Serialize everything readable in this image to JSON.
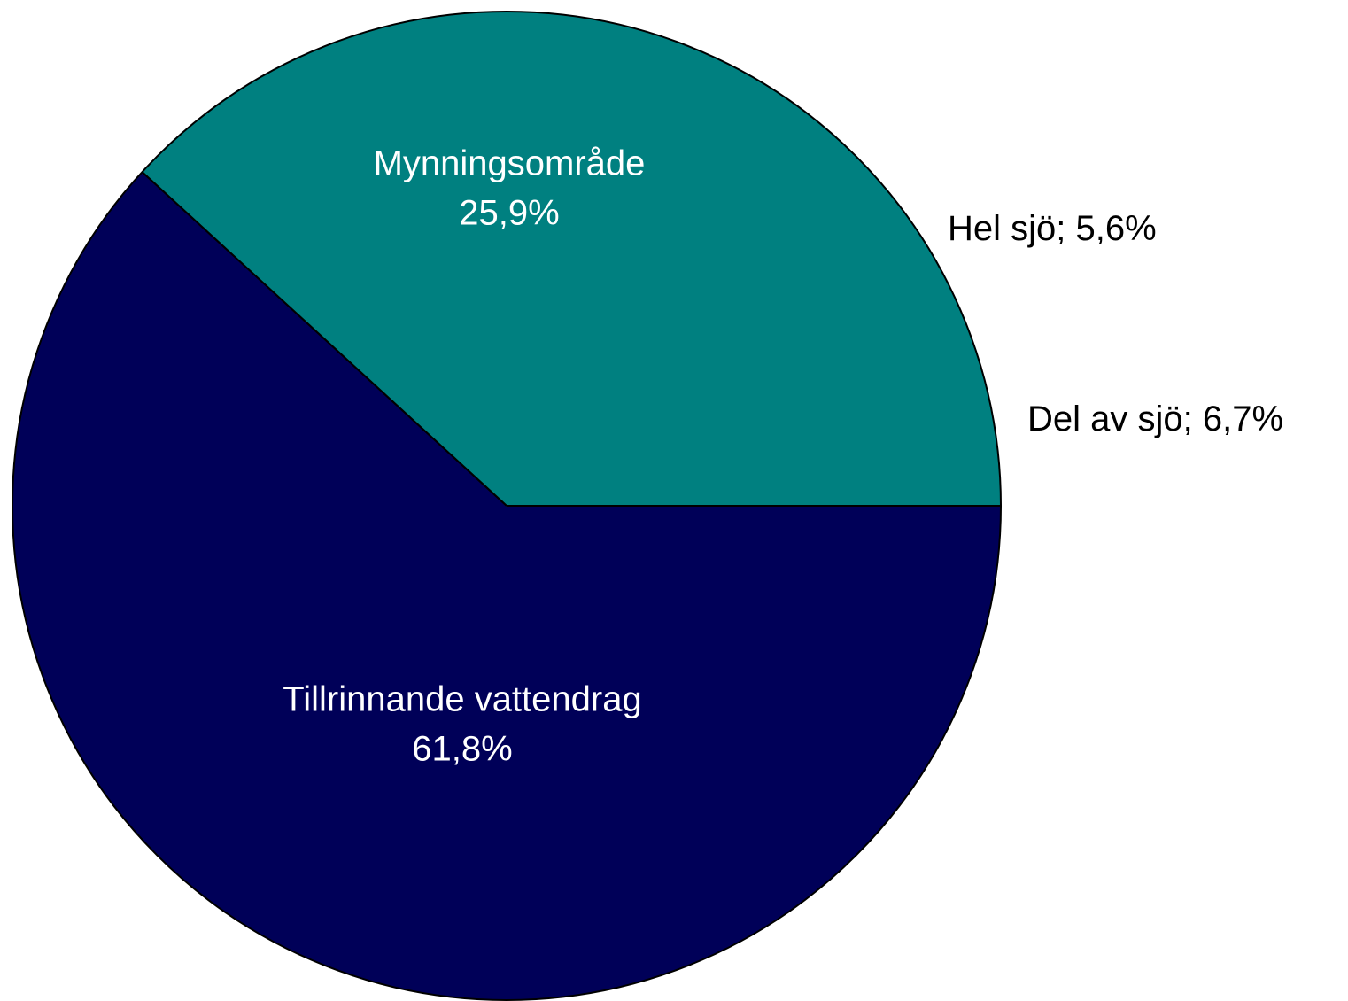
{
  "chart_data": {
    "type": "pie",
    "categories": [
      "Tillrinnande vattendrag",
      "Mynningsområde",
      "Hel sjö",
      "Del av sjö"
    ],
    "values": [
      61.8,
      25.9,
      5.6,
      6.7
    ],
    "value_labels": [
      "61,8%",
      "25,9%",
      "5,6%",
      "6,7%"
    ],
    "label_separator": "; ",
    "colors": [
      "#000058",
      "#008080",
      "#008080",
      "#008080"
    ]
  }
}
